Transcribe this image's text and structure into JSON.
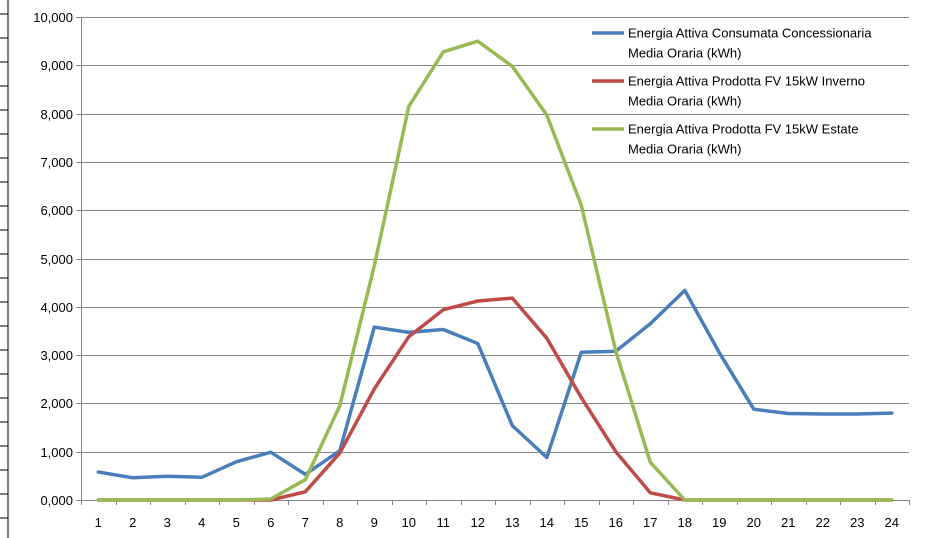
{
  "chart_data": {
    "type": "line",
    "title": "",
    "xlabel": "",
    "ylabel": "",
    "categories": [
      "1",
      "2",
      "3",
      "4",
      "5",
      "6",
      "7",
      "8",
      "9",
      "10",
      "11",
      "12",
      "13",
      "14",
      "15",
      "16",
      "17",
      "18",
      "19",
      "20",
      "21",
      "22",
      "23",
      "24"
    ],
    "ylim": [
      0,
      10
    ],
    "yticks": [
      0,
      1,
      2,
      3,
      4,
      5,
      6,
      7,
      8,
      9,
      10
    ],
    "ytick_labels": [
      "0,000",
      "1,000",
      "2,000",
      "3,000",
      "4,000",
      "5,000",
      "6,000",
      "7,000",
      "8,000",
      "9,000",
      "10,000"
    ],
    "grid": "horizontal",
    "legend_position": "top-right",
    "series": [
      {
        "name_lines": [
          "Energia Attiva Consumata Concessionaria",
          "Media Oraria (kWh)"
        ],
        "color": "#4a7ebb",
        "values": [
          0.58,
          0.46,
          0.49,
          0.47,
          0.79,
          0.99,
          0.53,
          1.02,
          3.58,
          3.47,
          3.53,
          3.24,
          1.54,
          0.88,
          3.06,
          3.08,
          3.65,
          4.34,
          3.05,
          1.88,
          1.79,
          1.78,
          1.78,
          1.8
        ]
      },
      {
        "name_lines": [
          "Energia Attiva Prodotta FV 15kW Inverno",
          "Media Oraria (kWh)"
        ],
        "color": "#be4b48",
        "values": [
          0,
          0,
          0,
          0,
          0,
          0,
          0.17,
          0.97,
          2.3,
          3.38,
          3.94,
          4.12,
          4.18,
          3.35,
          2.12,
          1.0,
          0.15,
          0,
          0,
          0,
          0,
          0,
          0,
          0
        ]
      },
      {
        "name_lines": [
          "Energia Attiva Prodotta FV 15kW Estate",
          "Media Oraria (kWh)"
        ],
        "color": "#98b954",
        "values": [
          0,
          0,
          0,
          0,
          0,
          0.02,
          0.42,
          1.95,
          4.85,
          8.15,
          9.28,
          9.5,
          8.98,
          7.97,
          6.1,
          3.08,
          0.78,
          0,
          0,
          0,
          0,
          0,
          0,
          0
        ]
      }
    ]
  }
}
